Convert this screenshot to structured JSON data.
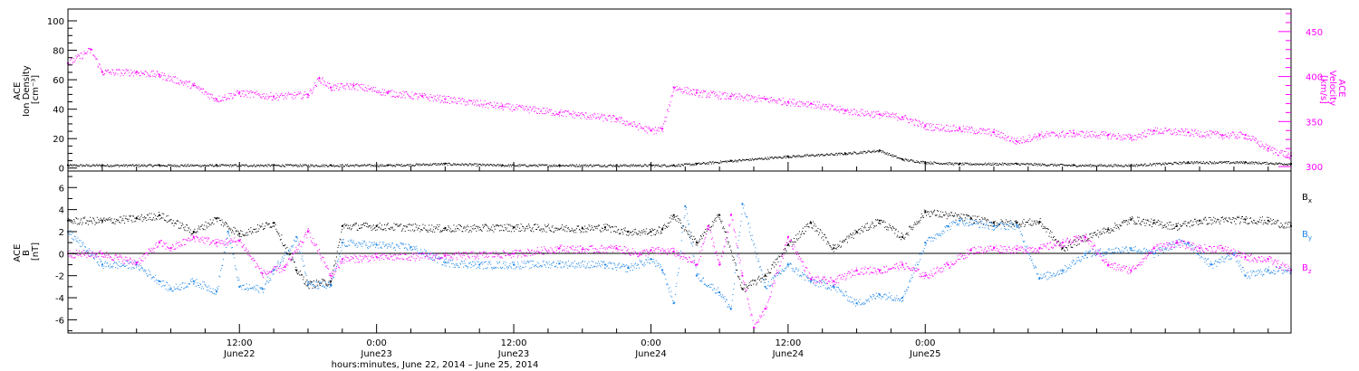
{
  "chart_data": [
    {
      "type": "scatter",
      "panel": "top",
      "ylabel": [
        "ACE",
        "Ion Density",
        "[cm⁻³]"
      ],
      "ylim": [
        -2,
        108
      ],
      "yticks": [
        0,
        20,
        40,
        60,
        80,
        100
      ],
      "y2label": [
        "ACE",
        "Velocity",
        "[km/s]"
      ],
      "y2lim": [
        295,
        475
      ],
      "y2ticks": [
        300,
        350,
        400,
        450
      ],
      "xlim": [
        -3,
        104
      ],
      "colors": {
        "density": "#000000",
        "velocity": "#ff00ff"
      },
      "series": [
        {
          "name": "",
          "role": "density",
          "axis": "left",
          "x": [
            -3,
            0,
            5,
            10,
            15,
            20,
            25,
            30,
            35,
            40,
            45,
            48,
            50,
            52,
            55,
            60,
            65,
            68,
            70,
            72,
            75,
            80,
            85,
            90,
            95,
            100,
            104
          ],
          "y": [
            2,
            2,
            2,
            2,
            2,
            2,
            2,
            3,
            2,
            2,
            2,
            2,
            2,
            3,
            5,
            8,
            10,
            12,
            6,
            4,
            3,
            3,
            2,
            2,
            4,
            4,
            3
          ]
        },
        {
          "name": "",
          "role": "velocity",
          "axis": "right",
          "x": [
            -3,
            -1,
            0,
            3,
            5,
            8,
            10,
            12,
            15,
            18,
            19,
            20,
            22,
            25,
            28,
            30,
            35,
            40,
            45,
            48,
            49,
            50,
            52,
            55,
            58,
            60,
            62,
            65,
            68,
            70,
            72,
            75,
            78,
            80,
            82,
            85,
            88,
            90,
            92,
            95,
            98,
            100,
            102,
            104
          ],
          "y": [
            415,
            430,
            405,
            405,
            402,
            390,
            375,
            382,
            378,
            380,
            398,
            388,
            390,
            382,
            378,
            375,
            367,
            360,
            353,
            340,
            342,
            388,
            382,
            378,
            375,
            372,
            370,
            362,
            358,
            355,
            345,
            342,
            338,
            328,
            335,
            337,
            335,
            332,
            340,
            338,
            335,
            335,
            320,
            312
          ]
        }
      ]
    },
    {
      "type": "scatter",
      "panel": "bottom",
      "ylabel": [
        "ACE",
        "B",
        "[nT]"
      ],
      "ylim": [
        -7.2,
        7.5
      ],
      "yticks": [
        -6,
        -4,
        -2,
        0,
        2,
        4,
        6
      ],
      "xlim": [
        -3,
        104
      ],
      "zero_line": true,
      "legend": [
        {
          "label": "B",
          "sub": "x",
          "color": "#000000"
        },
        {
          "label": "B",
          "sub": "y",
          "color": "#1f86e6"
        },
        {
          "label": "B",
          "sub": "z",
          "color": "#ff00ff"
        }
      ],
      "series": [
        {
          "name": "Bx",
          "color": "#000000",
          "x": [
            -3,
            0,
            3,
            5,
            8,
            10,
            12,
            15,
            17,
            18,
            20,
            21,
            24,
            30,
            36,
            42,
            44,
            46,
            48,
            49,
            50,
            52,
            54,
            56,
            58,
            60,
            62,
            64,
            66,
            68,
            70,
            72,
            76,
            78,
            80,
            82,
            84,
            86,
            88,
            90,
            92,
            94,
            96,
            100,
            102,
            104
          ],
          "y": [
            3,
            3,
            3.2,
            3.5,
            2,
            3.2,
            1.8,
            2.8,
            -1.5,
            -2.8,
            -2.5,
            2.5,
            2.5,
            2.3,
            2.4,
            2.3,
            2.4,
            2,
            2,
            2.2,
            3.5,
            1,
            3.5,
            -3.2,
            -2,
            0.8,
            2.8,
            0.5,
            2,
            3,
            1.5,
            3.8,
            3.2,
            2.8,
            2.8,
            2.9,
            0.5,
            1.5,
            2.2,
            3.1,
            2.8,
            2.5,
            3,
            3.1,
            3,
            2.5
          ]
        },
        {
          "name": "By",
          "color": "#1f86e6",
          "x": [
            -3,
            0,
            3,
            5,
            6,
            8,
            10,
            11,
            12,
            14,
            15,
            17,
            18,
            20,
            21,
            24,
            27,
            30,
            33,
            36,
            40,
            44,
            46,
            48,
            49,
            50,
            51,
            52,
            54,
            55,
            56,
            58,
            60,
            62,
            64,
            66,
            68,
            70,
            72,
            74,
            75,
            78,
            80,
            82,
            84,
            86,
            90,
            92,
            94,
            95,
            97,
            99,
            100,
            102,
            104
          ],
          "y": [
            2,
            -1,
            -1,
            -2.5,
            -3.2,
            -2.5,
            -3.4,
            2,
            -3,
            -3.2,
            -1.5,
            1.5,
            -2.8,
            -2.9,
            1,
            0.8,
            0.6,
            -0.8,
            -1,
            -1,
            -0.9,
            -1,
            -1.3,
            -0.5,
            -1.5,
            -4.5,
            4.3,
            -2,
            -3.5,
            -5,
            4.5,
            -3,
            -1,
            -2.5,
            -3,
            -4.5,
            -3.7,
            -4,
            1,
            2.5,
            3,
            2.5,
            2.6,
            -2.2,
            -1.5,
            0,
            0.5,
            0,
            1,
            1,
            -1,
            0,
            -2,
            -1.5,
            -1.5
          ]
        },
        {
          "name": "Bz",
          "color": "#ff00ff",
          "x": [
            -3,
            0,
            3,
            5,
            6,
            8,
            10,
            12,
            14,
            16,
            18,
            20,
            21,
            24,
            30,
            36,
            40,
            42,
            45,
            47,
            48,
            50,
            52,
            53,
            54,
            55,
            56,
            57,
            58,
            60,
            62,
            64,
            66,
            68,
            70,
            72,
            74,
            76,
            78,
            80,
            82,
            84,
            86,
            88,
            90,
            92,
            94,
            96,
            98,
            100,
            102,
            104
          ],
          "y": [
            0,
            0,
            -0.8,
            1,
            0.5,
            1.5,
            1,
            1.2,
            -1.8,
            -1.2,
            2,
            -2,
            -0.5,
            -0.3,
            -0.2,
            0,
            0.5,
            0.4,
            0.5,
            0,
            0.3,
            0.2,
            -1,
            2.5,
            -1,
            3.5,
            -2,
            -6.7,
            -5,
            1.5,
            -2.3,
            -2.5,
            -1.5,
            -1.5,
            -1,
            -2,
            -1,
            0.3,
            0.5,
            0.4,
            0.5,
            1,
            1.5,
            -1,
            -1.5,
            0.5,
            1,
            0.5,
            0.5,
            -0.3,
            -0.5,
            -1.5
          ]
        }
      ]
    }
  ],
  "x_axis": {
    "ticks": [
      {
        "x": 12,
        "line1": "12:00",
        "line2": "June22"
      },
      {
        "x": 24,
        "line1": "0:00",
        "line2": "June23"
      },
      {
        "x": 36,
        "line1": "12:00",
        "line2": "June23"
      },
      {
        "x": 48,
        "line1": "0:00",
        "line2": "June24"
      },
      {
        "x": 60,
        "line1": "12:00",
        "line2": "June24"
      },
      {
        "x": 72,
        "line1": "0:00",
        "line2": "June25"
      }
    ],
    "label": "hours:minutes, June 22, 2014 – June 25, 2014"
  }
}
